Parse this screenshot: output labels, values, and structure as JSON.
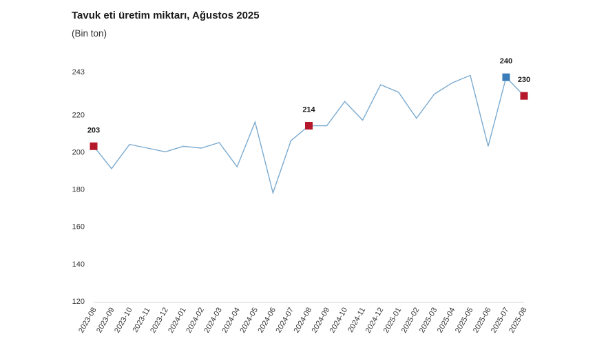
{
  "chart_data": {
    "type": "line",
    "title": "Tavuk eti üretim miktarı, Ağustos 2025",
    "subtitle": "(Bin ton)",
    "xlabel": "",
    "ylabel": "",
    "ylim": [
      120,
      243
    ],
    "yticks": [
      120,
      140,
      160,
      180,
      200,
      220,
      243
    ],
    "grid": false,
    "colors": {
      "line": "#7aaad0",
      "marker_red": "#b5182a",
      "marker_blue": "#3a7db8"
    },
    "categories": [
      "2023-08",
      "2023-09",
      "2023-10",
      "2023-11",
      "2023-12",
      "2024-01",
      "2024-02",
      "2024-03",
      "2024-04",
      "2024-05",
      "2024-06",
      "2024-07",
      "2024-08",
      "2024-09",
      "2024-10",
      "2024-11",
      "2024-12",
      "2025-01",
      "2025-02",
      "2025-03",
      "2025-04",
      "2025-05",
      "2025-06",
      "2025-07",
      "2025-08"
    ],
    "series": [
      {
        "values": [
          203,
          191,
          204,
          202,
          200,
          203,
          202,
          205,
          192,
          216,
          178,
          206,
          214,
          214,
          227,
          217,
          236,
          232,
          218,
          231,
          237,
          241,
          203,
          240,
          230
        ]
      }
    ],
    "highlights": [
      {
        "index": 0,
        "label": "203",
        "color": "red"
      },
      {
        "index": 12,
        "label": "214",
        "color": "red"
      },
      {
        "index": 23,
        "label": "240",
        "color": "blue"
      },
      {
        "index": 24,
        "label": "230",
        "color": "red"
      }
    ]
  }
}
